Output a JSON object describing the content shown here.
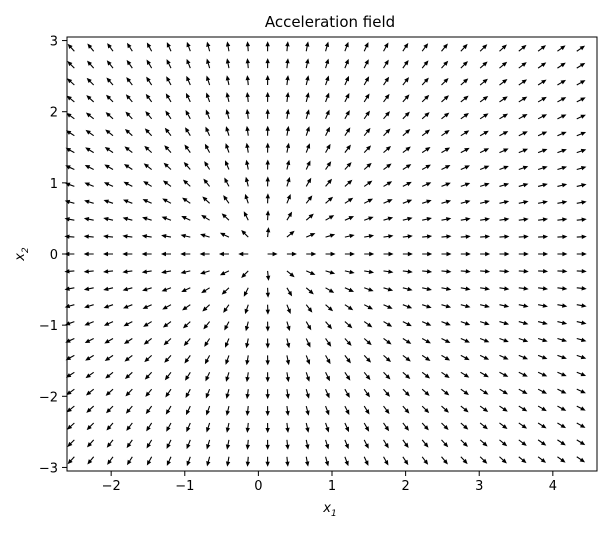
{
  "chart_data": {
    "type": "quiver",
    "title": "Acceleration field",
    "xlabel": "x1",
    "ylabel": "x2",
    "xlim": [
      -2.6,
      4.6
    ],
    "ylim": [
      -3.05,
      3.05
    ],
    "x_ticks": [
      -2,
      -1,
      0,
      1,
      2,
      3,
      4
    ],
    "y_ticks": [
      -3,
      -2,
      -1,
      0,
      1,
      2,
      3
    ],
    "grid": false,
    "arrow_color": "#000000",
    "field": {
      "description": "radially outward unit-direction arrows centered near (0.1, 0)",
      "center": [
        0.1,
        0.0
      ],
      "x_start": -2.5,
      "x_step": 0.2625,
      "x_count": 27,
      "y_start": -2.85,
      "y_step": 0.2375,
      "y_count": 25
    }
  }
}
